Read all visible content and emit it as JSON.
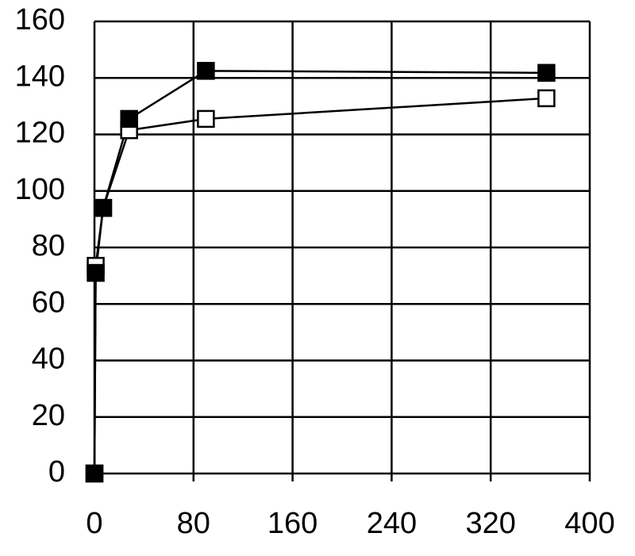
{
  "chart_data": {
    "type": "line",
    "x": [
      0,
      1,
      7,
      28,
      90,
      365
    ],
    "series": [
      {
        "color": "#000000",
        "marker": "square-open",
        "values": [
          0,
          73.5,
          94,
          121.5,
          125.5,
          132.8
        ]
      },
      {
        "color": "#000000",
        "marker": "square-filled",
        "values": [
          0,
          71,
          94,
          125.5,
          142.5,
          141.8
        ]
      }
    ],
    "xlim": [
      0,
      400
    ],
    "xticks": [
      0,
      80,
      160,
      240,
      320,
      400
    ],
    "ylim": [
      0,
      160
    ],
    "yticks": [
      0,
      20,
      40,
      60,
      80,
      100,
      120,
      140,
      160
    ],
    "grid": true
  }
}
